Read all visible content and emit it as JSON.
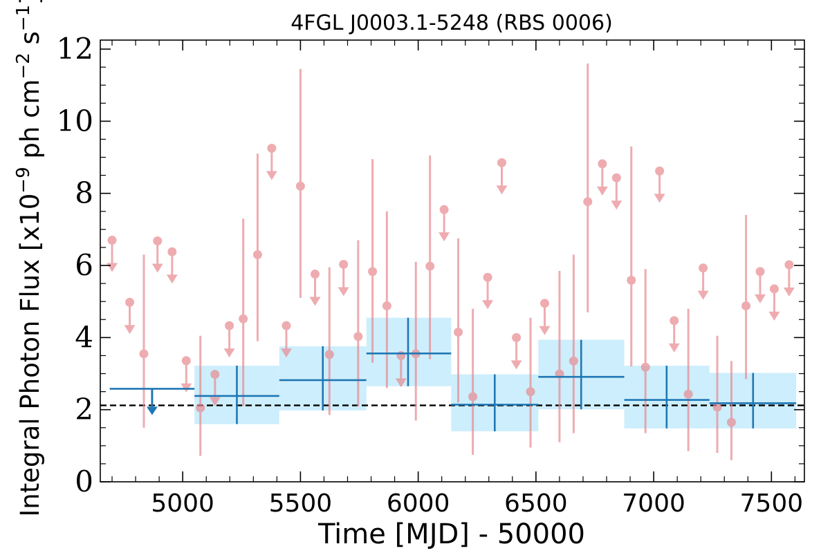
{
  "chart_data": {
    "type": "scatter",
    "title": "4FGL J0003.1-5248 (RBS 0006)",
    "xlabel": "Time [MJD] - 50000",
    "ylabel_main": "Integral Photon Flux [x10",
    "ylabel_exp1": "−9",
    "ylabel_mid": " ph cm",
    "ylabel_exp2": "−2",
    "ylabel_end": " s",
    "ylabel_exp3": "−1",
    "ylabel_close": "]",
    "xlim": [
      4650,
      7640
    ],
    "ylim": [
      0,
      12.25
    ],
    "xticks": [
      5000,
      5500,
      6000,
      6500,
      7000,
      7500
    ],
    "yticks": [
      0,
      2,
      4,
      6,
      8,
      10,
      12
    ],
    "xtick_labels": [
      "5000",
      "5500",
      "6000",
      "6500",
      "7000",
      "7500"
    ],
    "ytick_labels": [
      "0",
      "2",
      "4",
      "6",
      "8",
      "10",
      "12"
    ],
    "reference_line": {
      "y": 2.12,
      "style": "dashed",
      "color": "#000000"
    },
    "colors": {
      "short_bins": "#e88a8f",
      "long_bins": "#1f77b4",
      "long_band": "#cdeefc"
    },
    "short_bins": [
      {
        "x": 4700,
        "y": 6.7,
        "ul": true
      },
      {
        "x": 4775,
        "y": 4.98,
        "ul": true
      },
      {
        "x": 4835,
        "y": 3.55,
        "lo": 1.5,
        "hi": 6.3
      },
      {
        "x": 4893,
        "y": 6.68,
        "ul": true
      },
      {
        "x": 4955,
        "y": 6.38,
        "ul": true
      },
      {
        "x": 5015,
        "y": 3.36,
        "ul": true
      },
      {
        "x": 5075,
        "y": 2.05,
        "lo": 0.72,
        "hi": 4.05
      },
      {
        "x": 5137,
        "y": 2.98,
        "ul": true
      },
      {
        "x": 5198,
        "y": 4.33,
        "ul": true
      },
      {
        "x": 5257,
        "y": 4.52,
        "lo": 2.1,
        "hi": 7.3
      },
      {
        "x": 5318,
        "y": 6.3,
        "lo": 3.9,
        "hi": 9.1
      },
      {
        "x": 5378,
        "y": 9.25,
        "ul": true
      },
      {
        "x": 5440,
        "y": 4.33,
        "ul": true
      },
      {
        "x": 5500,
        "y": 8.2,
        "lo": 5.1,
        "hi": 11.45
      },
      {
        "x": 5562,
        "y": 5.76,
        "ul": true
      },
      {
        "x": 5623,
        "y": 3.53,
        "lo": 1.85,
        "hi": 5.95
      },
      {
        "x": 5683,
        "y": 6.03,
        "ul": true
      },
      {
        "x": 5745,
        "y": 4.03,
        "lo": 2.1,
        "hi": 6.7
      },
      {
        "x": 5806,
        "y": 5.83,
        "lo": 3.3,
        "hi": 8.95
      },
      {
        "x": 5867,
        "y": 4.88,
        "lo": 2.6,
        "hi": 7.5
      },
      {
        "x": 5927,
        "y": 3.5,
        "ul": true
      },
      {
        "x": 5990,
        "y": 3.55,
        "lo": 1.7,
        "hi": 6.1
      },
      {
        "x": 6050,
        "y": 5.98,
        "lo": 3.4,
        "hi": 9.05
      },
      {
        "x": 6110,
        "y": 7.55,
        "ul": true
      },
      {
        "x": 6170,
        "y": 4.15,
        "lo": 2.2,
        "hi": 6.75
      },
      {
        "x": 6232,
        "y": 2.36,
        "lo": 0.75,
        "hi": 4.8
      },
      {
        "x": 6295,
        "y": 5.67,
        "ul": true
      },
      {
        "x": 6355,
        "y": 8.85,
        "ul": true
      },
      {
        "x": 6417,
        "y": 4.0,
        "ul": true
      },
      {
        "x": 6477,
        "y": 2.5,
        "lo": 0.95,
        "hi": 4.55
      },
      {
        "x": 6537,
        "y": 4.95,
        "ul": true
      },
      {
        "x": 6600,
        "y": 2.99,
        "lo": 1.1,
        "hi": 5.85
      },
      {
        "x": 6660,
        "y": 3.35,
        "lo": 1.35,
        "hi": 6.3
      },
      {
        "x": 6720,
        "y": 7.77,
        "lo": 4.7,
        "hi": 11.6
      },
      {
        "x": 6782,
        "y": 8.82,
        "ul": true
      },
      {
        "x": 6842,
        "y": 8.43,
        "ul": true
      },
      {
        "x": 6905,
        "y": 5.59,
        "lo": 3.2,
        "hi": 9.3
      },
      {
        "x": 6965,
        "y": 3.18,
        "lo": 1.35,
        "hi": 5.9
      },
      {
        "x": 7025,
        "y": 8.62,
        "ul": true
      },
      {
        "x": 7087,
        "y": 4.47,
        "ul": true
      },
      {
        "x": 7147,
        "y": 2.43,
        "lo": 0.85,
        "hi": 4.8
      },
      {
        "x": 7210,
        "y": 5.93,
        "ul": true
      },
      {
        "x": 7270,
        "y": 2.07,
        "lo": 0.8,
        "hi": 4.05
      },
      {
        "x": 7330,
        "y": 1.65,
        "lo": 0.6,
        "hi": 3.35
      },
      {
        "x": 7392,
        "y": 4.88,
        "lo": 2.85,
        "hi": 7.4
      },
      {
        "x": 7452,
        "y": 5.83,
        "ul": true
      },
      {
        "x": 7512,
        "y": 5.35,
        "ul": true
      },
      {
        "x": 7575,
        "y": 6.02,
        "ul": true
      }
    ],
    "long_bins": [
      {
        "x": 4870,
        "x0": 4690,
        "x1": 5050,
        "y": 2.58,
        "ul": true
      },
      {
        "x": 5230,
        "x0": 5050,
        "x1": 5410,
        "y": 2.38,
        "lo": 1.6,
        "hi": 3.22,
        "band_lo": 1.6,
        "band_hi": 3.22
      },
      {
        "x": 5595,
        "x0": 5410,
        "x1": 5780,
        "y": 2.82,
        "lo": 1.98,
        "hi": 3.76,
        "band_lo": 1.98,
        "band_hi": 3.76
      },
      {
        "x": 5957,
        "x0": 5780,
        "x1": 6140,
        "y": 3.56,
        "lo": 2.65,
        "hi": 4.55,
        "band_lo": 2.65,
        "band_hi": 4.55
      },
      {
        "x": 6325,
        "x0": 6140,
        "x1": 6510,
        "y": 2.14,
        "lo": 1.4,
        "hi": 2.98,
        "band_lo": 1.4,
        "band_hi": 2.98
      },
      {
        "x": 6692,
        "x0": 6510,
        "x1": 6875,
        "y": 2.91,
        "lo": 2.01,
        "hi": 3.94,
        "band_lo": 2.01,
        "band_hi": 3.94
      },
      {
        "x": 7055,
        "x0": 6875,
        "x1": 7237,
        "y": 2.27,
        "lo": 1.48,
        "hi": 3.22,
        "band_lo": 1.48,
        "band_hi": 3.22
      },
      {
        "x": 7422,
        "x0": 7237,
        "x1": 7605,
        "y": 2.18,
        "lo": 1.48,
        "hi": 3.02,
        "band_lo": 1.48,
        "band_hi": 3.02
      }
    ]
  }
}
